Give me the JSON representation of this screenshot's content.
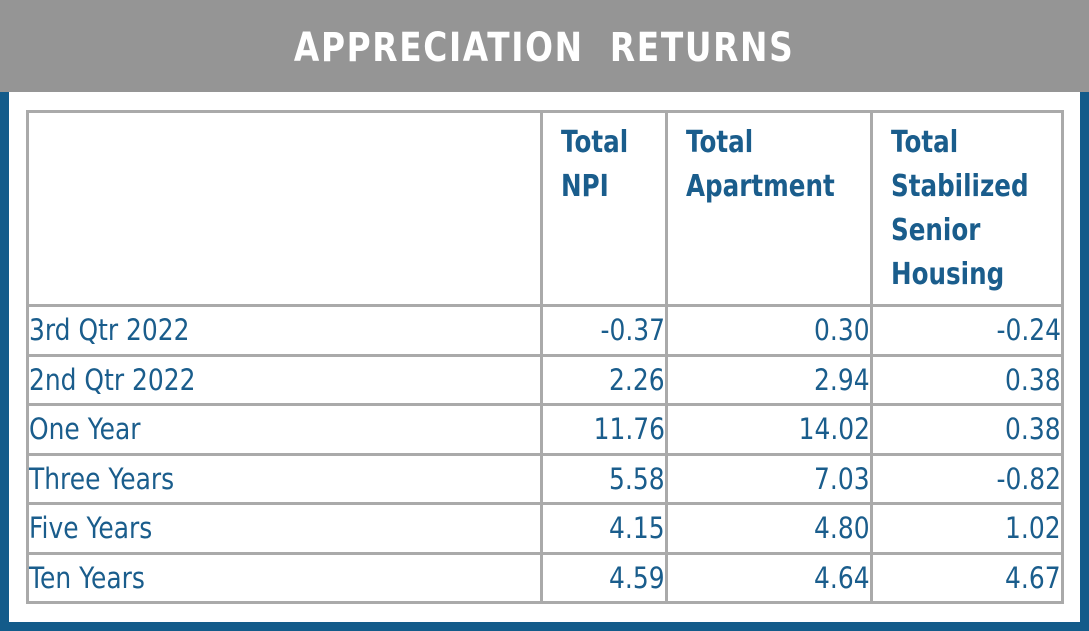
{
  "header": {
    "title": "APPRECIATION  RETURNS"
  },
  "table": {
    "columns": [
      {
        "label": ""
      },
      {
        "label": "Total\nNPI"
      },
      {
        "label": "Total\nApartment"
      },
      {
        "label": "Total\nStabilized\nSenior\nHousing"
      }
    ],
    "rows": [
      {
        "period": "3rd Qtr 2022",
        "npi": "-0.37",
        "apartment": "0.30",
        "senior_housing": "-0.24"
      },
      {
        "period": "2nd Qtr 2022",
        "npi": "2.26",
        "apartment": "2.94",
        "senior_housing": "0.38"
      },
      {
        "period": "One Year",
        "npi": "11.76",
        "apartment": "14.02",
        "senior_housing": "0.38"
      },
      {
        "period": "Three Years",
        "npi": "5.58",
        "apartment": "7.03",
        "senior_housing": "-0.82"
      },
      {
        "period": "Five Years",
        "npi": "4.15",
        "apartment": "4.80",
        "senior_housing": "1.02"
      },
      {
        "period": "Ten Years",
        "npi": "4.59",
        "apartment": "4.64",
        "senior_housing": "4.67"
      }
    ]
  },
  "colors": {
    "header_bg": "#959595",
    "border_blue": "#135b8a",
    "text_blue": "#1a5d8c",
    "grid_gray": "#aaaaaa"
  }
}
